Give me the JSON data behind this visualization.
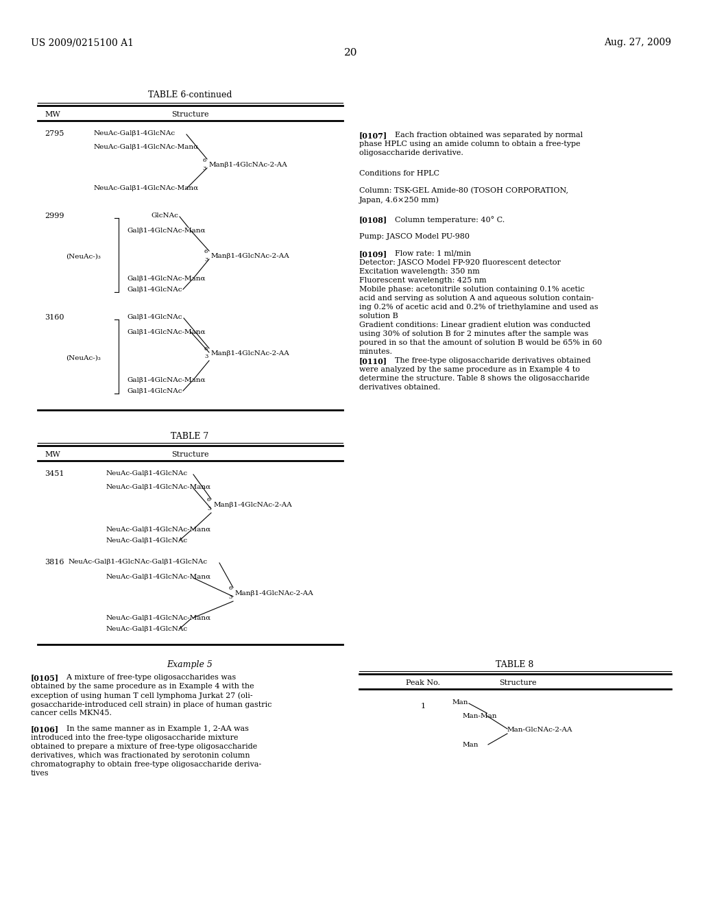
{
  "header_left": "US 2009/0215100 A1",
  "header_right": "Aug. 27, 2009",
  "page_number": "20",
  "bg_color": "#ffffff",
  "table6_title": "TABLE 6-continued",
  "table6_col1": "MW",
  "table6_col2": "Structure",
  "table7_title": "TABLE 7",
  "table7_col1": "MW",
  "table7_col2": "Structure",
  "table8_title": "TABLE 8",
  "table8_col1": "Peak No.",
  "table8_col2": "Structure",
  "example5_title": "Example 5"
}
